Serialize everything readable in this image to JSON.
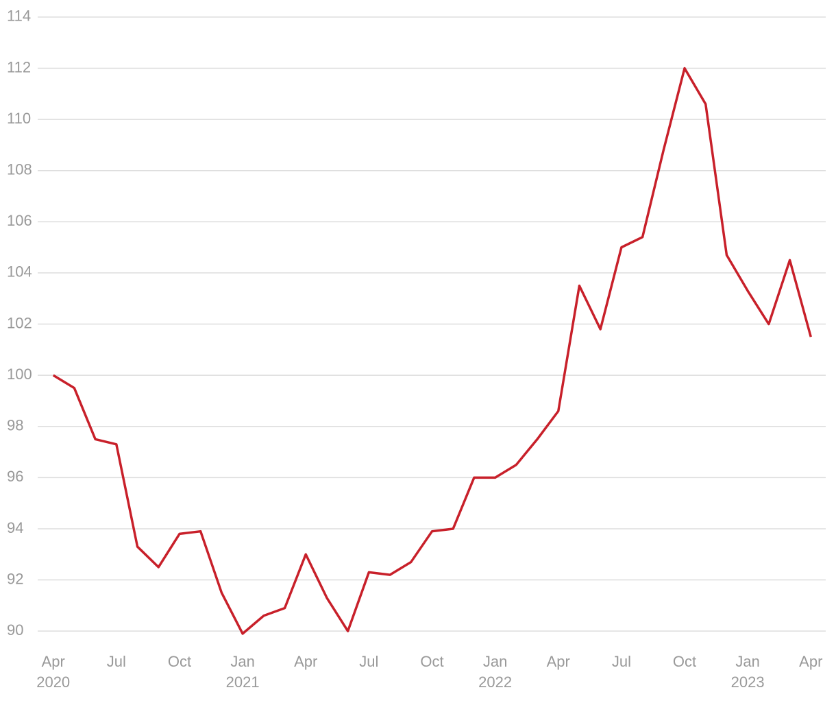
{
  "chart_data": {
    "type": "line",
    "x": [
      "2020-04",
      "2020-05",
      "2020-06",
      "2020-07",
      "2020-08",
      "2020-09",
      "2020-10",
      "2020-11",
      "2020-12",
      "2021-01",
      "2021-02",
      "2021-03",
      "2021-04",
      "2021-05",
      "2021-06",
      "2021-07",
      "2021-08",
      "2021-09",
      "2021-10",
      "2021-11",
      "2021-12",
      "2022-01",
      "2022-02",
      "2022-03",
      "2022-04",
      "2022-05",
      "2022-06",
      "2022-07",
      "2022-08",
      "2022-09",
      "2022-10",
      "2022-11",
      "2022-12",
      "2023-01",
      "2023-02",
      "2023-03",
      "2023-04"
    ],
    "series": [
      {
        "color": "#c8202a",
        "values": [
          100.0,
          99.5,
          97.5,
          97.3,
          93.3,
          92.5,
          93.8,
          93.9,
          91.5,
          89.9,
          90.6,
          90.9,
          93.0,
          91.3,
          90.0,
          92.3,
          92.2,
          92.7,
          93.9,
          94.0,
          96.0,
          96.0,
          96.5,
          97.5,
          98.6,
          103.5,
          101.8,
          105.0,
          105.4,
          108.8,
          112.0,
          110.6,
          104.7,
          103.3,
          102.0,
          104.5,
          101.5
        ]
      }
    ],
    "xlim": [
      "2020-03",
      "2023-05"
    ],
    "xticks": [
      {
        "value": "2020-04",
        "label": "Apr",
        "year": "2020"
      },
      {
        "value": "2020-07",
        "label": "Jul"
      },
      {
        "value": "2020-10",
        "label": "Oct"
      },
      {
        "value": "2021-01",
        "label": "Jan",
        "year": "2021"
      },
      {
        "value": "2021-04",
        "label": "Apr"
      },
      {
        "value": "2021-07",
        "label": "Jul"
      },
      {
        "value": "2021-10",
        "label": "Oct"
      },
      {
        "value": "2022-01",
        "label": "Jan",
        "year": "2022"
      },
      {
        "value": "2022-04",
        "label": "Apr"
      },
      {
        "value": "2022-07",
        "label": "Jul"
      },
      {
        "value": "2022-10",
        "label": "Oct"
      },
      {
        "value": "2023-01",
        "label": "Jan",
        "year": "2023"
      },
      {
        "value": "2023-04",
        "label": "Apr"
      }
    ],
    "ylim": [
      89.2,
      114.4
    ],
    "yticks": [
      90,
      92,
      94,
      96,
      98,
      100,
      102,
      104,
      106,
      108,
      110,
      112,
      114
    ],
    "grid": true
  }
}
